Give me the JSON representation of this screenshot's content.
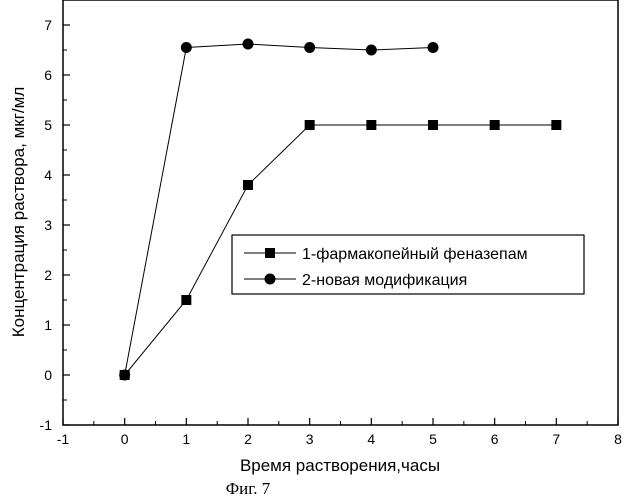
{
  "chart_data": {
    "type": "line",
    "xlabel": "Время растворения,часы",
    "ylabel": "Концентрация раствора, мкг/мл",
    "xlim": [
      -1,
      8
    ],
    "ylim": [
      -1,
      7.5
    ],
    "xticks": [
      -1,
      0,
      1,
      2,
      3,
      4,
      5,
      6,
      7,
      8
    ],
    "yticks": [
      -1,
      0,
      1,
      2,
      3,
      4,
      5,
      6,
      7
    ],
    "grid": false,
    "legend_position": "center-right",
    "series": [
      {
        "name": "1-фармакопейный феназепам",
        "marker": "square",
        "x": [
          0,
          1,
          2,
          3,
          4,
          5,
          6,
          7
        ],
        "y": [
          0,
          1.5,
          3.8,
          5.0,
          5.0,
          5.0,
          5.0,
          5.0
        ]
      },
      {
        "name": "2-новая модификация",
        "marker": "circle",
        "x": [
          0,
          1,
          2,
          3,
          4,
          5
        ],
        "y": [
          0,
          6.55,
          6.62,
          6.55,
          6.5,
          6.55
        ]
      }
    ]
  },
  "caption": "Фиг. 7",
  "colors": {
    "ink": "#000000",
    "background": "#ffffff"
  }
}
